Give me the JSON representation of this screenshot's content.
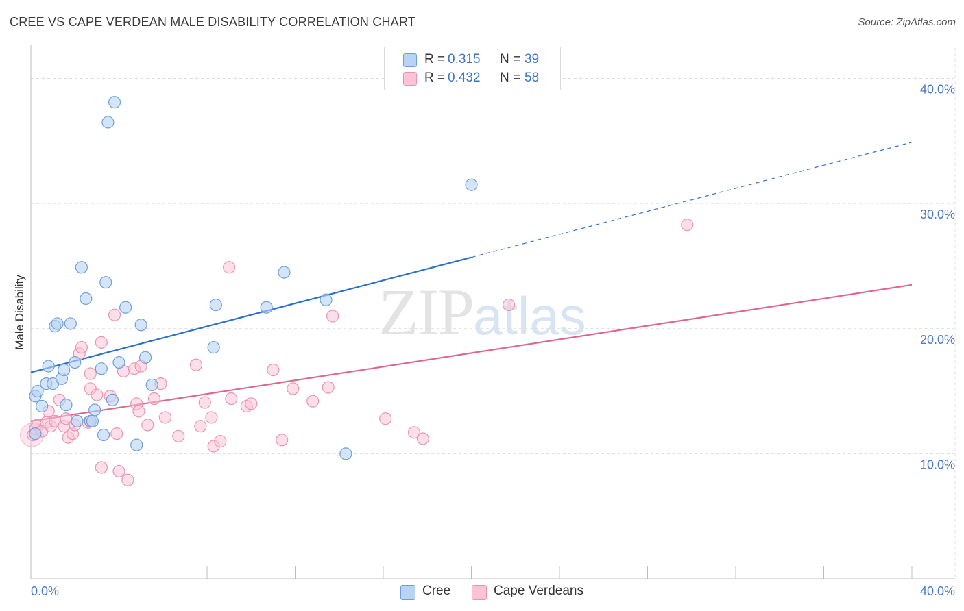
{
  "title": "CREE VS CAPE VERDEAN MALE DISABILITY CORRELATION CHART",
  "source": "Source: ZipAtlas.com",
  "watermark": {
    "zip": "ZIP",
    "atlas": "atlas"
  },
  "colors": {
    "cree_fill": "#b9d3f5",
    "cree_stroke": "#6e9fdc",
    "cree_line": "#2a70d0",
    "cape_fill": "#f9c5d6",
    "cape_stroke": "#eb93b2",
    "cape_line": "#e0658f",
    "tick_text": "#4a7bc8"
  },
  "legend": {
    "rows": [
      {
        "r_label": "R =",
        "r_value": "0.315",
        "n_label": "N =",
        "n_value": "39"
      },
      {
        "r_label": "R =",
        "r_value": "0.432",
        "n_label": "N =",
        "n_value": "58"
      }
    ]
  },
  "bottom_legend": {
    "cree": "Cree",
    "cape": "Cape Verdeans"
  },
  "chart_data": {
    "type": "scatter",
    "title": "CREE VS CAPE VERDEAN MALE DISABILITY CORRELATION CHART",
    "xlabel": "",
    "ylabel": "Male Disability",
    "xlim": [
      0,
      40
    ],
    "ylim": [
      0,
      42
    ],
    "x_tick_labels": [
      "0.0%",
      "40.0%"
    ],
    "y_ticks": [
      10,
      20,
      30,
      40
    ],
    "y_tick_labels": [
      "10.0%",
      "20.0%",
      "30.0%",
      "40.0%"
    ],
    "grid": true,
    "legend_position": "top-center",
    "series": [
      {
        "name": "Cree",
        "r": 0.315,
        "n": 39,
        "trend": {
          "x0": 0,
          "y0": 16.5,
          "x1": 20,
          "y1": 25.7,
          "dashed_to_x": 40,
          "dashed_to_y": 34.9
        },
        "points": [
          [
            0.2,
            11.6
          ],
          [
            0.2,
            14.6
          ],
          [
            0.3,
            15.0
          ],
          [
            0.5,
            13.8
          ],
          [
            0.7,
            15.6
          ],
          [
            0.8,
            17.0
          ],
          [
            1.0,
            15.6
          ],
          [
            1.1,
            20.2
          ],
          [
            1.2,
            20.4
          ],
          [
            1.4,
            16.0
          ],
          [
            1.5,
            16.7
          ],
          [
            1.6,
            13.9
          ],
          [
            1.8,
            20.4
          ],
          [
            2.0,
            17.3
          ],
          [
            2.1,
            12.6
          ],
          [
            2.3,
            24.9
          ],
          [
            2.5,
            22.4
          ],
          [
            2.7,
            12.6
          ],
          [
            2.8,
            12.6
          ],
          [
            2.9,
            13.5
          ],
          [
            3.2,
            16.8
          ],
          [
            3.3,
            11.5
          ],
          [
            3.4,
            23.7
          ],
          [
            3.5,
            36.5
          ],
          [
            3.7,
            14.3
          ],
          [
            3.8,
            38.1
          ],
          [
            4.0,
            17.3
          ],
          [
            4.3,
            21.7
          ],
          [
            4.8,
            10.7
          ],
          [
            5.0,
            20.3
          ],
          [
            5.2,
            17.7
          ],
          [
            5.5,
            15.5
          ],
          [
            8.3,
            18.5
          ],
          [
            8.4,
            21.9
          ],
          [
            10.7,
            21.7
          ],
          [
            11.5,
            24.5
          ],
          [
            13.4,
            22.3
          ],
          [
            14.3,
            10.0
          ],
          [
            20.0,
            31.5
          ]
        ]
      },
      {
        "name": "Cape Verdeans",
        "r": 0.432,
        "n": 58,
        "trend": {
          "x0": 0,
          "y0": 12.6,
          "x1": 40,
          "y1": 23.5
        },
        "points": [
          [
            0.1,
            11.5
          ],
          [
            0.2,
            12.0
          ],
          [
            0.3,
            12.3
          ],
          [
            0.5,
            11.8
          ],
          [
            0.7,
            12.5
          ],
          [
            0.8,
            13.4
          ],
          [
            0.9,
            12.2
          ],
          [
            1.1,
            12.6
          ],
          [
            1.3,
            14.3
          ],
          [
            1.5,
            12.2
          ],
          [
            1.6,
            12.8
          ],
          [
            1.7,
            11.3
          ],
          [
            1.9,
            11.6
          ],
          [
            2.0,
            12.3
          ],
          [
            2.2,
            18.0
          ],
          [
            2.3,
            18.5
          ],
          [
            2.6,
            12.5
          ],
          [
            2.7,
            16.4
          ],
          [
            2.7,
            15.2
          ],
          [
            3.0,
            14.7
          ],
          [
            3.2,
            18.9
          ],
          [
            3.2,
            8.9
          ],
          [
            3.6,
            14.6
          ],
          [
            3.8,
            21.1
          ],
          [
            3.9,
            11.6
          ],
          [
            4.0,
            8.6
          ],
          [
            4.2,
            16.6
          ],
          [
            4.4,
            7.9
          ],
          [
            4.7,
            16.8
          ],
          [
            4.8,
            14.0
          ],
          [
            4.9,
            13.4
          ],
          [
            5.0,
            17.0
          ],
          [
            5.3,
            12.3
          ],
          [
            5.6,
            14.4
          ],
          [
            5.9,
            15.6
          ],
          [
            6.1,
            12.9
          ],
          [
            6.7,
            11.4
          ],
          [
            7.5,
            17.1
          ],
          [
            7.7,
            12.2
          ],
          [
            7.9,
            14.1
          ],
          [
            8.2,
            12.9
          ],
          [
            8.3,
            10.6
          ],
          [
            8.6,
            11.0
          ],
          [
            9.0,
            24.9
          ],
          [
            9.1,
            14.4
          ],
          [
            9.8,
            13.8
          ],
          [
            10.0,
            14.0
          ],
          [
            11.0,
            16.7
          ],
          [
            11.4,
            11.1
          ],
          [
            11.9,
            15.2
          ],
          [
            12.8,
            14.2
          ],
          [
            13.5,
            15.3
          ],
          [
            13.7,
            21.0
          ],
          [
            16.1,
            12.8
          ],
          [
            17.4,
            11.7
          ],
          [
            17.8,
            11.2
          ],
          [
            21.7,
            21.9
          ],
          [
            29.8,
            28.3
          ]
        ]
      }
    ]
  }
}
